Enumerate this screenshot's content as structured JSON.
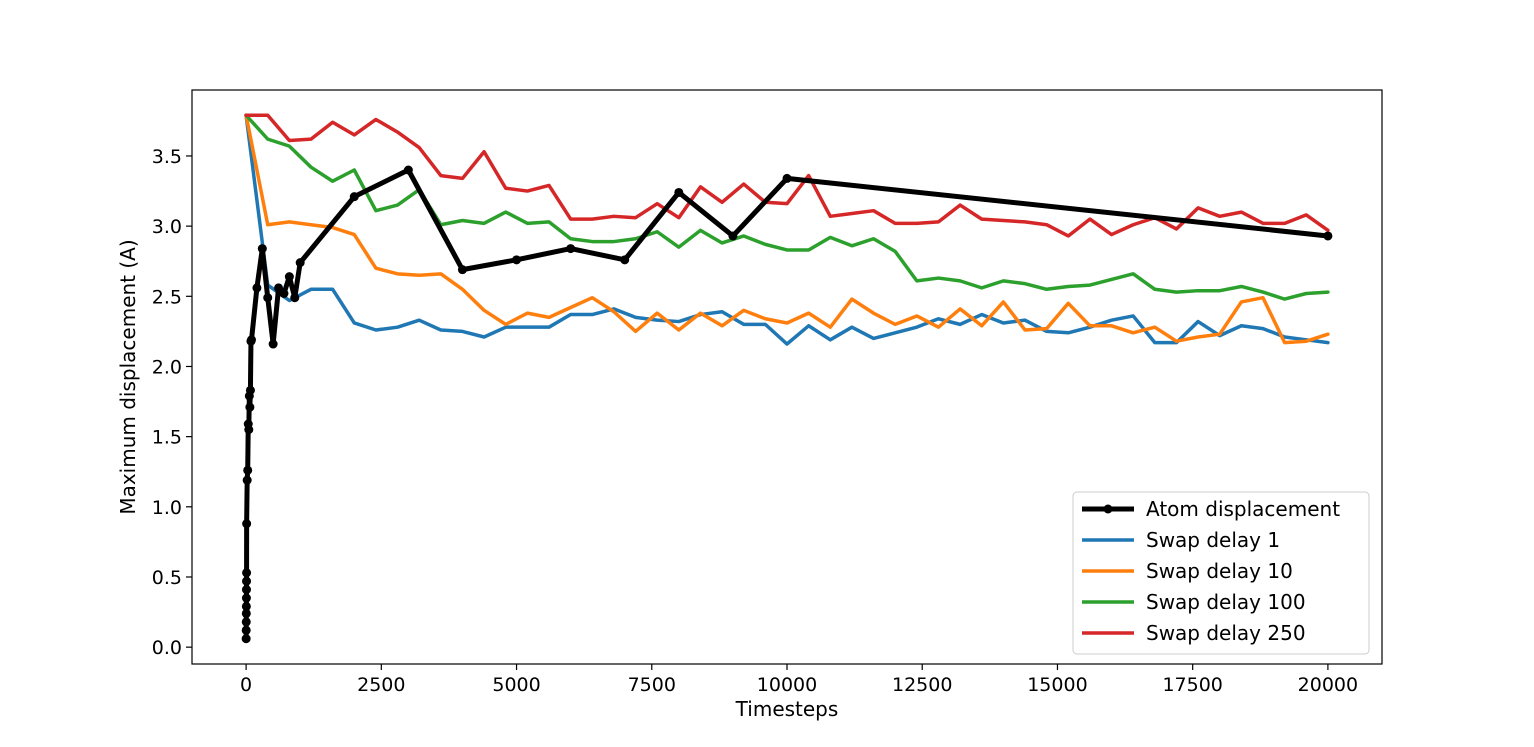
{
  "chart_data": {
    "type": "line",
    "title": "",
    "xlabel": "Timesteps",
    "ylabel": "Maximum displacement (A)",
    "xlim": [
      -1000,
      21000
    ],
    "ylim": [
      -0.12,
      3.97
    ],
    "xticks": [
      0,
      2500,
      5000,
      7500,
      10000,
      12500,
      15000,
      17500,
      20000
    ],
    "xtick_labels": [
      "0",
      "2500",
      "5000",
      "7500",
      "10000",
      "12500",
      "15000",
      "17500",
      "20000"
    ],
    "yticks": [
      0.0,
      0.5,
      1.0,
      1.5,
      2.0,
      2.5,
      3.0,
      3.5
    ],
    "ytick_labels": [
      "0.0",
      "0.5",
      "1.0",
      "1.5",
      "2.0",
      "2.5",
      "3.0",
      "3.5"
    ],
    "grid": false,
    "legend_position": "lower-right",
    "series": [
      {
        "name": "Atom displacement",
        "color": "#000000",
        "marker": "circle",
        "x": [
          1,
          2,
          3,
          4,
          5,
          6,
          7,
          8,
          9,
          10,
          20,
          30,
          40,
          50,
          60,
          70,
          80,
          90,
          100,
          200,
          300,
          400,
          500,
          600,
          700,
          800,
          900,
          1000,
          2000,
          3000,
          4000,
          5000,
          6000,
          7000,
          8000,
          9000,
          10000,
          20000
        ],
        "y": [
          0.06,
          0.12,
          0.18,
          0.24,
          0.29,
          0.35,
          0.41,
          0.47,
          0.53,
          0.88,
          1.19,
          1.26,
          1.59,
          1.55,
          1.79,
          1.71,
          1.83,
          2.18,
          2.19,
          2.56,
          2.84,
          2.49,
          2.16,
          2.56,
          2.52,
          2.64,
          2.49,
          2.74,
          3.21,
          3.4,
          2.69,
          2.76,
          2.84,
          2.76,
          3.24,
          2.93,
          3.34,
          2.93
        ]
      },
      {
        "name": "Swap delay 1",
        "color": "#1f77b4",
        "x": [
          0,
          400,
          800,
          1200,
          1600,
          2000,
          2400,
          2800,
          3200,
          3600,
          4000,
          4400,
          4800,
          5200,
          5600,
          6000,
          6400,
          6800,
          7200,
          7600,
          8000,
          8400,
          8800,
          9200,
          9600,
          10000,
          10400,
          10800,
          11200,
          11600,
          12000,
          12400,
          12800,
          13200,
          13600,
          14000,
          14400,
          14800,
          15200,
          15600,
          16000,
          16400,
          16800,
          17200,
          17600,
          18000,
          18400,
          18800,
          19200,
          19600,
          20000
        ],
        "y": [
          3.79,
          2.58,
          2.47,
          2.55,
          2.55,
          2.31,
          2.26,
          2.28,
          2.33,
          2.26,
          2.25,
          2.21,
          2.28,
          2.28,
          2.28,
          2.37,
          2.37,
          2.41,
          2.35,
          2.33,
          2.32,
          2.37,
          2.39,
          2.3,
          2.3,
          2.16,
          2.29,
          2.19,
          2.28,
          2.2,
          2.24,
          2.28,
          2.34,
          2.3,
          2.37,
          2.31,
          2.33,
          2.25,
          2.24,
          2.28,
          2.33,
          2.36,
          2.17,
          2.17,
          2.32,
          2.22,
          2.29,
          2.27,
          2.21,
          2.19,
          2.17
        ]
      },
      {
        "name": "Swap delay 10",
        "color": "#ff7f0e",
        "x": [
          0,
          400,
          800,
          1200,
          1600,
          2000,
          2400,
          2800,
          3200,
          3600,
          4000,
          4400,
          4800,
          5200,
          5600,
          6000,
          6400,
          6800,
          7200,
          7600,
          8000,
          8400,
          8800,
          9200,
          9600,
          10000,
          10400,
          10800,
          11200,
          11600,
          12000,
          12400,
          12800,
          13200,
          13600,
          14000,
          14400,
          14800,
          15200,
          15600,
          16000,
          16400,
          16800,
          17200,
          17600,
          18000,
          18400,
          18800,
          19200,
          19600,
          20000
        ],
        "y": [
          3.79,
          3.01,
          3.03,
          3.01,
          2.99,
          2.94,
          2.7,
          2.66,
          2.65,
          2.66,
          2.55,
          2.4,
          2.3,
          2.38,
          2.35,
          2.42,
          2.49,
          2.39,
          2.25,
          2.38,
          2.26,
          2.38,
          2.29,
          2.4,
          2.34,
          2.31,
          2.38,
          2.28,
          2.48,
          2.38,
          2.3,
          2.36,
          2.28,
          2.41,
          2.29,
          2.46,
          2.26,
          2.27,
          2.45,
          2.29,
          2.29,
          2.24,
          2.28,
          2.18,
          2.21,
          2.23,
          2.46,
          2.49,
          2.17,
          2.18,
          2.23
        ]
      },
      {
        "name": "Swap delay 100",
        "color": "#2ca02c",
        "x": [
          0,
          400,
          800,
          1200,
          1600,
          2000,
          2400,
          2800,
          3200,
          3600,
          4000,
          4400,
          4800,
          5200,
          5600,
          6000,
          6400,
          6800,
          7200,
          7600,
          8000,
          8400,
          8800,
          9200,
          9600,
          10000,
          10400,
          10800,
          11200,
          11600,
          12000,
          12400,
          12800,
          13200,
          13600,
          14000,
          14400,
          14800,
          15200,
          15600,
          16000,
          16400,
          16800,
          17200,
          17600,
          18000,
          18400,
          18800,
          19200,
          19600,
          20000
        ],
        "y": [
          3.79,
          3.62,
          3.57,
          3.42,
          3.32,
          3.4,
          3.11,
          3.15,
          3.26,
          3.01,
          3.04,
          3.02,
          3.1,
          3.02,
          3.03,
          2.91,
          2.89,
          2.89,
          2.91,
          2.96,
          2.85,
          2.97,
          2.88,
          2.93,
          2.87,
          2.83,
          2.83,
          2.92,
          2.86,
          2.91,
          2.82,
          2.61,
          2.63,
          2.61,
          2.56,
          2.61,
          2.59,
          2.55,
          2.57,
          2.58,
          2.62,
          2.66,
          2.55,
          2.53,
          2.54,
          2.54,
          2.57,
          2.53,
          2.48,
          2.52,
          2.53
        ]
      },
      {
        "name": "Swap delay 250",
        "color": "#d62728",
        "x": [
          0,
          400,
          800,
          1200,
          1600,
          2000,
          2400,
          2800,
          3200,
          3600,
          4000,
          4400,
          4800,
          5200,
          5600,
          6000,
          6400,
          6800,
          7200,
          7600,
          8000,
          8400,
          8800,
          9200,
          9600,
          10000,
          10400,
          10800,
          11200,
          11600,
          12000,
          12400,
          12800,
          13200,
          13600,
          14000,
          14400,
          14800,
          15200,
          15600,
          16000,
          16400,
          16800,
          17200,
          17600,
          18000,
          18400,
          18800,
          19200,
          19600,
          20000
        ],
        "y": [
          3.79,
          3.79,
          3.61,
          3.62,
          3.74,
          3.65,
          3.76,
          3.67,
          3.56,
          3.36,
          3.34,
          3.53,
          3.27,
          3.25,
          3.29,
          3.05,
          3.05,
          3.07,
          3.06,
          3.16,
          3.06,
          3.28,
          3.17,
          3.3,
          3.17,
          3.16,
          3.36,
          3.07,
          3.09,
          3.11,
          3.02,
          3.02,
          3.03,
          3.15,
          3.05,
          3.04,
          3.03,
          3.01,
          2.93,
          3.05,
          2.94,
          3.01,
          3.06,
          2.98,
          3.13,
          3.07,
          3.1,
          3.02,
          3.02,
          3.08,
          2.97
        ]
      }
    ]
  }
}
